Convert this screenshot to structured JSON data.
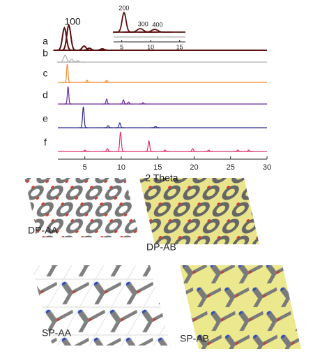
{
  "chart_data": {
    "type": "stacked-pattern",
    "x_label": "2 Theta",
    "xlim": [
      1.3,
      30
    ],
    "xticks": [
      5,
      10,
      15,
      20,
      25,
      30
    ],
    "peak_label": "100",
    "series": [
      {
        "name": "a",
        "color": "#5a1010",
        "x": [
          2.2,
          2.8,
          4.9,
          5.6,
          7.4
        ],
        "values": [
          32,
          36,
          6,
          3,
          2
        ]
      },
      {
        "name": "b",
        "color": "#b0b0b0",
        "x": [
          2.3,
          3.2,
          4.0
        ],
        "values": [
          10,
          4,
          2
        ]
      },
      {
        "name": "c",
        "color": "#f08a2a",
        "x": [
          2.6,
          5.3,
          8.0
        ],
        "values": [
          26,
          3,
          3
        ]
      },
      {
        "name": "d",
        "color": "#6a2a9a",
        "x": [
          2.7,
          8.0,
          10.3,
          11.0,
          13.0
        ],
        "values": [
          25,
          7,
          6,
          3,
          2
        ]
      },
      {
        "name": "e",
        "color": "#2a2a8a",
        "x": [
          4.8,
          8.2,
          9.8,
          14.7
        ],
        "values": [
          30,
          3,
          7,
          2
        ]
      },
      {
        "name": "f",
        "color": "#e0306a",
        "x": [
          5.0,
          8.1,
          9.9,
          13.8,
          16.0,
          19.8,
          22.0,
          26.0,
          27.5
        ],
        "values": [
          2,
          4,
          28,
          15,
          2,
          4,
          2,
          2,
          2
        ]
      }
    ],
    "inset": {
      "xlim": [
        3.6,
        16
      ],
      "xticks": [
        5,
        10,
        15
      ],
      "x": [
        5.4,
        8.2,
        10.7
      ],
      "values": [
        28,
        5,
        4
      ],
      "peak_labels": [
        "200",
        "300",
        "400"
      ],
      "color": "#5a1010"
    }
  },
  "structure_labels": [
    "DP-AA",
    "DP-AB",
    "SP-AA",
    "SP-AB"
  ]
}
